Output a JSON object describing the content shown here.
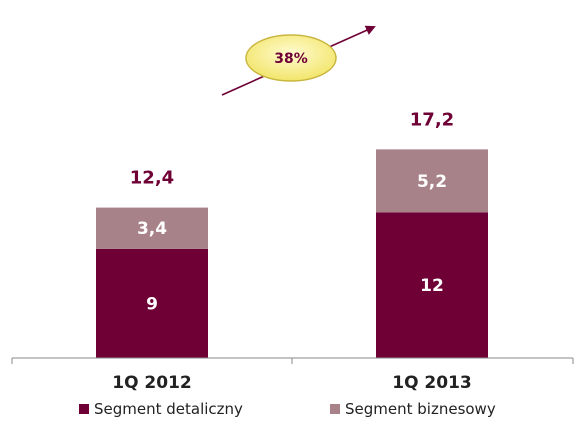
{
  "chart_data": {
    "type": "bar",
    "stacked": true,
    "categories": [
      "1Q 2012",
      "1Q 2013"
    ],
    "series": [
      {
        "name": "Segment detaliczny",
        "values": [
          9,
          12
        ],
        "value_labels": [
          "9",
          "12"
        ],
        "color": "#6f0036"
      },
      {
        "name": "Segment biznesowy",
        "values": [
          3.4,
          5.2
        ],
        "value_labels": [
          "3,4",
          "5,2"
        ],
        "color": "#a88289"
      }
    ],
    "totals": [
      12.4,
      17.2
    ],
    "total_labels": [
      "12,4",
      "17,2"
    ],
    "growth_label": "38%",
    "ylim": [
      0,
      21
    ],
    "grid": false,
    "legend_position": "bottom",
    "colors": {
      "total_label": "#6f0036",
      "badge_fill": "#f7ee8a",
      "badge_stroke": "#c9b640",
      "arrow": "#6f0036"
    }
  }
}
